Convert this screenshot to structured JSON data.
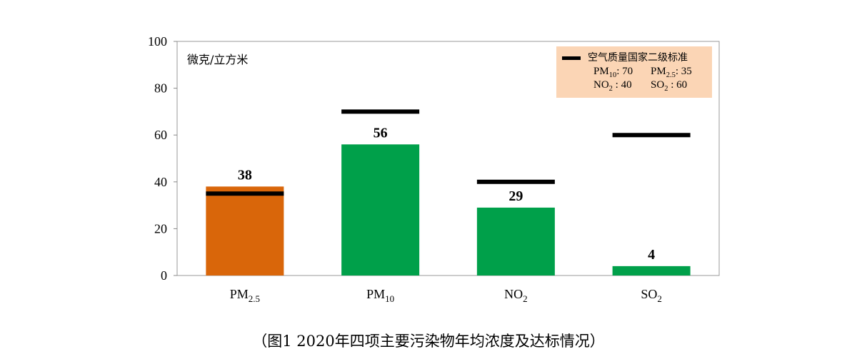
{
  "chart_data": {
    "type": "bar",
    "title": "",
    "ylabel": "微克/立方米",
    "xlabel": "",
    "categories": [
      "PM2.5",
      "PM10",
      "NO2",
      "SO2"
    ],
    "category_labels": [
      {
        "base": "PM",
        "sub": "2.5"
      },
      {
        "base": "PM",
        "sub": "10"
      },
      {
        "base": "NO",
        "sub": "2"
      },
      {
        "base": "SO",
        "sub": "2"
      }
    ],
    "values": [
      38,
      56,
      29,
      4
    ],
    "colors": [
      "#d9660a",
      "#00a04a",
      "#00a04a",
      "#00a04a"
    ],
    "standards": [
      35,
      70,
      40,
      60
    ],
    "ylim": [
      0,
      100
    ],
    "yticks": [
      0,
      20,
      40,
      60,
      80,
      100
    ],
    "grid": false,
    "legend": {
      "placement": "top-right",
      "title": "空气质量国家二级标准",
      "rows": [
        [
          "PM",
          "10",
          ": 70",
          "PM",
          "2.5",
          ": 35"
        ],
        [
          "NO",
          "2",
          " : 40",
          "SO",
          "2",
          " : 60"
        ]
      ]
    }
  },
  "caption": "（图1 2020年四项主要污染物年均浓度及达标情况）"
}
